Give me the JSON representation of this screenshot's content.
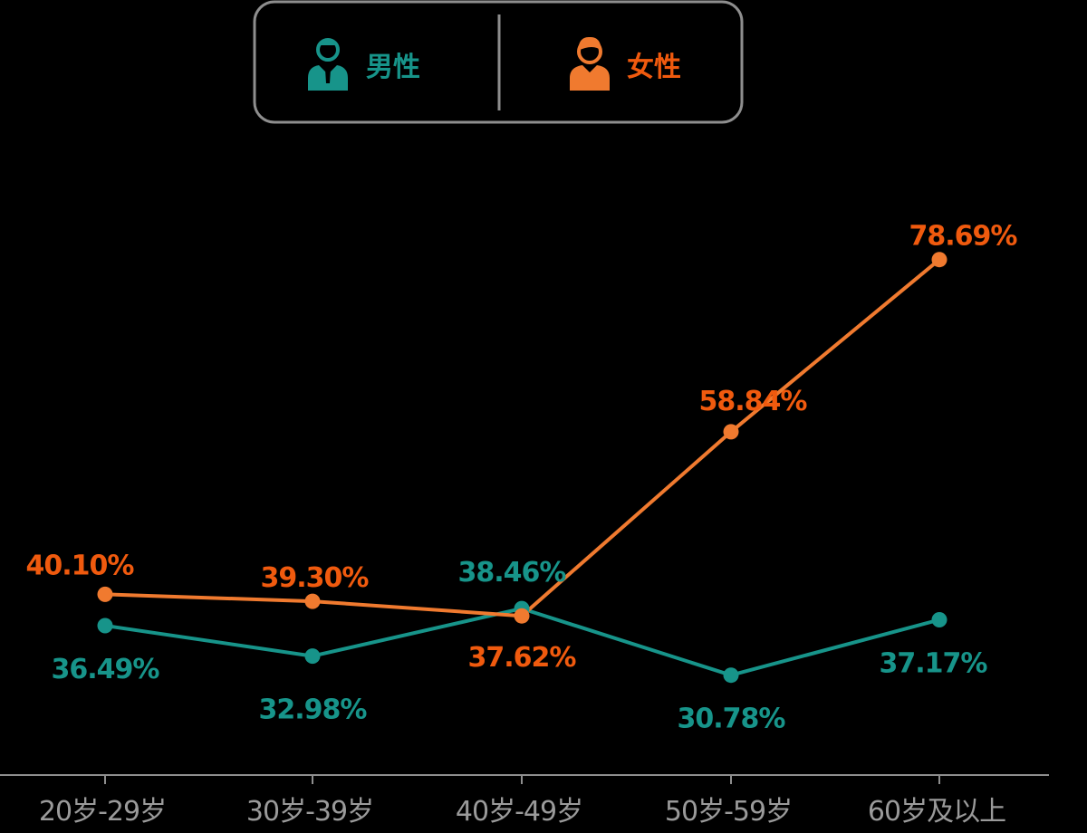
{
  "legend": {
    "male_label": "男性",
    "female_label": "女性",
    "male_icon": "male-person-icon",
    "female_icon": "female-person-icon"
  },
  "colors": {
    "male": "#17948a",
    "female": "#f07a2f",
    "female_text": "#f05a0e",
    "axis": "#8e8e8e"
  },
  "chart_data": {
    "type": "line",
    "categories": [
      "20岁-29岁",
      "30岁-39岁",
      "40岁-49岁",
      "50岁-59岁",
      "60岁及以上"
    ],
    "series": [
      {
        "name": "男性",
        "values": [
          36.49,
          32.98,
          38.46,
          30.78,
          37.17
        ],
        "labels": [
          "36.49%",
          "32.98%",
          "38.46%",
          "30.78%",
          "37.17%"
        ]
      },
      {
        "name": "女性",
        "values": [
          40.1,
          39.3,
          37.62,
          58.84,
          78.69
        ],
        "labels": [
          "40.10%",
          "39.30%",
          "37.62%",
          "58.84%",
          "78.69%"
        ]
      }
    ],
    "ylim": [
      25,
      85
    ],
    "grid": false,
    "legend_position": "top-center"
  }
}
